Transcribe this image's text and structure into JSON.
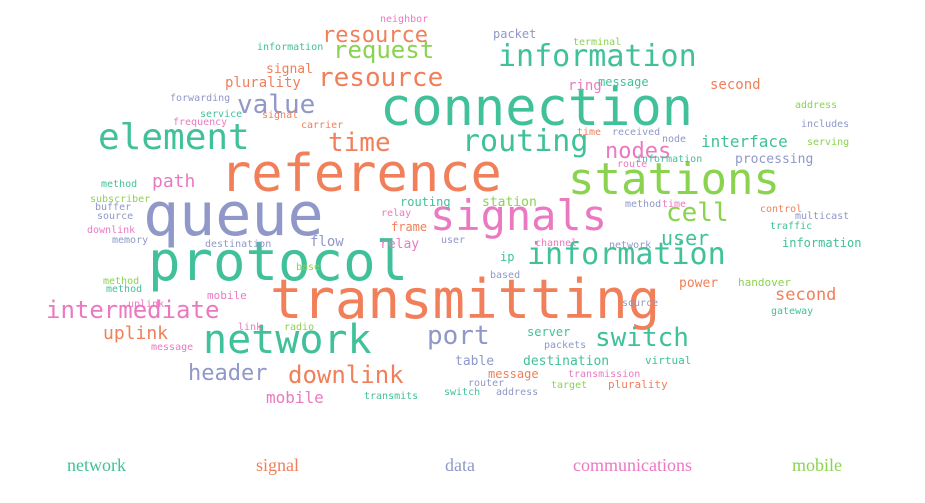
{
  "chart_data": {
    "type": "wordcloud",
    "legend_placement": "bottom",
    "categories": [
      {
        "name": "network",
        "color": "#40c19a"
      },
      {
        "name": "signal",
        "color": "#f07f5a"
      },
      {
        "name": "data",
        "color": "#8f98c8"
      },
      {
        "name": "communications",
        "color": "#ea79c1"
      },
      {
        "name": "mobile",
        "color": "#8ad34f"
      }
    ],
    "words": [
      {
        "text": "connection",
        "category": "network"
      },
      {
        "text": "reference",
        "category": "signal"
      },
      {
        "text": "queue",
        "category": "data"
      },
      {
        "text": "protocol",
        "category": "network"
      },
      {
        "text": "transmitting",
        "category": "signal"
      },
      {
        "text": "stations",
        "category": "mobile"
      },
      {
        "text": "signals",
        "category": "communications"
      },
      {
        "text": "element",
        "category": "network"
      },
      {
        "text": "network",
        "category": "network"
      },
      {
        "text": "information",
        "category": "network"
      },
      {
        "text": "information",
        "category": "network"
      },
      {
        "text": "routing",
        "category": "network"
      },
      {
        "text": "time",
        "category": "signal"
      },
      {
        "text": "resource",
        "category": "signal"
      },
      {
        "text": "resource",
        "category": "signal"
      },
      {
        "text": "request",
        "category": "mobile"
      },
      {
        "text": "value",
        "category": "data"
      },
      {
        "text": "cell",
        "category": "mobile"
      },
      {
        "text": "switch",
        "category": "network"
      },
      {
        "text": "port",
        "category": "data"
      },
      {
        "text": "intermediate",
        "category": "communications"
      },
      {
        "text": "downlink",
        "category": "signal"
      },
      {
        "text": "header",
        "category": "data"
      },
      {
        "text": "nodes",
        "category": "communications"
      },
      {
        "text": "user",
        "category": "network"
      },
      {
        "text": "uplink",
        "category": "signal"
      },
      {
        "text": "path",
        "category": "communications"
      },
      {
        "text": "interface",
        "category": "network"
      },
      {
        "text": "second",
        "category": "signal"
      },
      {
        "text": "mobile",
        "category": "communications"
      },
      {
        "text": "plurality",
        "category": "signal"
      },
      {
        "text": "ring",
        "category": "communications"
      },
      {
        "text": "signal",
        "category": "signal"
      },
      {
        "text": "processing",
        "category": "data"
      },
      {
        "text": "second",
        "category": "signal"
      },
      {
        "text": "information",
        "category": "network"
      },
      {
        "text": "table",
        "category": "data"
      },
      {
        "text": "destination",
        "category": "network"
      },
      {
        "text": "server",
        "category": "network"
      },
      {
        "text": "power",
        "category": "signal"
      },
      {
        "text": "flow",
        "category": "data"
      },
      {
        "text": "station",
        "category": "mobile"
      },
      {
        "text": "routing",
        "category": "network"
      },
      {
        "text": "ip",
        "category": "network"
      },
      {
        "text": "message",
        "category": "signal"
      },
      {
        "text": "message",
        "category": "network"
      },
      {
        "text": "relay",
        "category": "communications"
      },
      {
        "text": "frame",
        "category": "signal"
      },
      {
        "text": "relay",
        "category": "communications"
      },
      {
        "text": "packet",
        "category": "data"
      },
      {
        "text": "information",
        "category": "network"
      },
      {
        "text": "terminal",
        "category": "mobile"
      },
      {
        "text": "neighbor",
        "category": "communications"
      },
      {
        "text": "signal",
        "category": "signal"
      },
      {
        "text": "forwarding",
        "category": "data"
      },
      {
        "text": "service",
        "category": "network"
      },
      {
        "text": "frequency",
        "category": "communications"
      },
      {
        "text": "carrier",
        "category": "signal"
      },
      {
        "text": "time",
        "category": "signal"
      },
      {
        "text": "received",
        "category": "data"
      },
      {
        "text": "node",
        "category": "data"
      },
      {
        "text": "route",
        "category": "communications"
      },
      {
        "text": "address",
        "category": "mobile"
      },
      {
        "text": "includes",
        "category": "data"
      },
      {
        "text": "serving",
        "category": "mobile"
      },
      {
        "text": "method",
        "category": "network"
      },
      {
        "text": "subscriber",
        "category": "mobile"
      },
      {
        "text": "source",
        "category": "data"
      },
      {
        "text": "downlink",
        "category": "communications"
      },
      {
        "text": "memory",
        "category": "data"
      },
      {
        "text": "buffer",
        "category": "data"
      },
      {
        "text": "control",
        "category": "signal"
      },
      {
        "text": "multicast",
        "category": "data"
      },
      {
        "text": "traffic",
        "category": "network"
      },
      {
        "text": "destination",
        "category": "data"
      },
      {
        "text": "channel",
        "category": "communications"
      },
      {
        "text": "network",
        "category": "data"
      },
      {
        "text": "user",
        "category": "data"
      },
      {
        "text": "method",
        "category": "data"
      },
      {
        "text": "method",
        "category": "mobile"
      },
      {
        "text": "mobile",
        "category": "communications"
      },
      {
        "text": "link",
        "category": "communications"
      },
      {
        "text": "radio",
        "category": "mobile"
      },
      {
        "text": "message",
        "category": "communications"
      },
      {
        "text": "base",
        "category": "mobile"
      },
      {
        "text": "based",
        "category": "data"
      },
      {
        "text": "handover",
        "category": "mobile"
      },
      {
        "text": "source",
        "category": "data"
      },
      {
        "text": "gateway",
        "category": "network"
      },
      {
        "text": "packets",
        "category": "data"
      },
      {
        "text": "virtual",
        "category": "network"
      },
      {
        "text": "router",
        "category": "data"
      },
      {
        "text": "target",
        "category": "mobile"
      },
      {
        "text": "transmission",
        "category": "communications"
      },
      {
        "text": "plurality",
        "category": "signal"
      },
      {
        "text": "transmits",
        "category": "network"
      },
      {
        "text": "switch",
        "category": "network"
      },
      {
        "text": "address",
        "category": "data"
      },
      {
        "text": "method",
        "category": "network"
      },
      {
        "text": "time",
        "category": "communications"
      },
      {
        "text": "information",
        "category": "network"
      },
      {
        "text": "uplink",
        "category": "communications"
      }
    ]
  }
}
